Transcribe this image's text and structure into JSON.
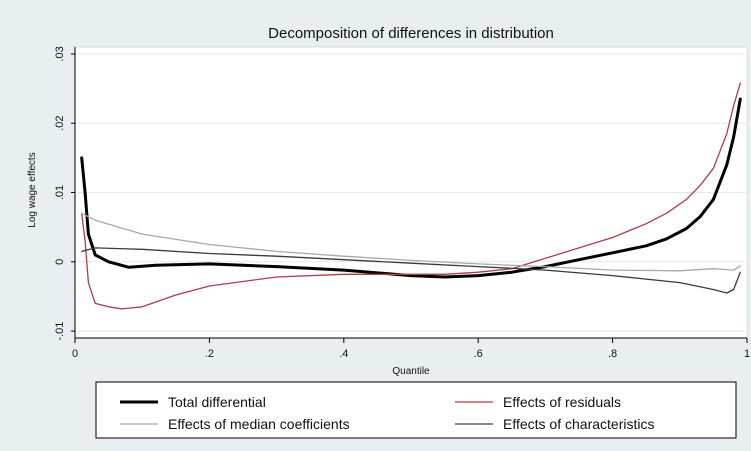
{
  "colors": {
    "background": "#e9eef1",
    "plot_background": "#ffffff",
    "total": "#000000",
    "residuals": "#b03a48",
    "median": "#a9a9a9",
    "characteristics": "#3a3a3a"
  },
  "chart_data": {
    "type": "line",
    "title": "Decomposition of differences in distribution",
    "xlabel": "Quantile",
    "ylabel": "Log wage effects",
    "xlim": [
      0,
      1
    ],
    "ylim": [
      -0.011,
      0.031
    ],
    "x_ticks": [
      0,
      0.2,
      0.4,
      0.6,
      0.8,
      1
    ],
    "x_tick_labels": [
      "0",
      ".2",
      ".4",
      ".6",
      ".8",
      "1"
    ],
    "y_ticks": [
      -0.01,
      0,
      0.01,
      0.02,
      0.03
    ],
    "y_tick_labels": [
      "-.01",
      "0",
      ".01",
      ".02",
      ".03"
    ],
    "grid": true,
    "legend": "bottom",
    "series": [
      {
        "name": "Total differential",
        "color_key": "total",
        "width": 3,
        "points": [
          [
            0.01,
            0.015
          ],
          [
            0.015,
            0.01
          ],
          [
            0.02,
            0.004
          ],
          [
            0.03,
            0.001
          ],
          [
            0.05,
            0.0
          ],
          [
            0.08,
            -0.0008
          ],
          [
            0.12,
            -0.0005
          ],
          [
            0.2,
            -0.0003
          ],
          [
            0.3,
            -0.0007
          ],
          [
            0.4,
            -0.0012
          ],
          [
            0.5,
            -0.002
          ],
          [
            0.55,
            -0.0022
          ],
          [
            0.6,
            -0.002
          ],
          [
            0.65,
            -0.0015
          ],
          [
            0.7,
            -0.0007
          ],
          [
            0.75,
            0.0003
          ],
          [
            0.8,
            0.0013
          ],
          [
            0.85,
            0.0023
          ],
          [
            0.88,
            0.0033
          ],
          [
            0.91,
            0.0048
          ],
          [
            0.93,
            0.0065
          ],
          [
            0.95,
            0.009
          ],
          [
            0.97,
            0.014
          ],
          [
            0.98,
            0.018
          ],
          [
            0.99,
            0.0235
          ]
        ]
      },
      {
        "name": "Effects of residuals",
        "color_key": "residuals",
        "width": 1.3,
        "points": [
          [
            0.01,
            0.007
          ],
          [
            0.015,
            0.003
          ],
          [
            0.02,
            -0.003
          ],
          [
            0.03,
            -0.006
          ],
          [
            0.05,
            -0.0065
          ],
          [
            0.07,
            -0.0068
          ],
          [
            0.1,
            -0.0065
          ],
          [
            0.15,
            -0.0048
          ],
          [
            0.2,
            -0.0035
          ],
          [
            0.3,
            -0.0022
          ],
          [
            0.4,
            -0.0018
          ],
          [
            0.5,
            -0.0018
          ],
          [
            0.55,
            -0.0018
          ],
          [
            0.6,
            -0.0015
          ],
          [
            0.65,
            -0.001
          ],
          [
            0.7,
            0.0005
          ],
          [
            0.75,
            0.002
          ],
          [
            0.8,
            0.0035
          ],
          [
            0.85,
            0.0055
          ],
          [
            0.88,
            0.007
          ],
          [
            0.91,
            0.009
          ],
          [
            0.93,
            0.011
          ],
          [
            0.95,
            0.0135
          ],
          [
            0.97,
            0.0185
          ],
          [
            0.98,
            0.0225
          ],
          [
            0.99,
            0.0258
          ]
        ]
      },
      {
        "name": "Effects of median coefficients",
        "color_key": "median",
        "width": 1.3,
        "points": [
          [
            0.01,
            0.007
          ],
          [
            0.03,
            0.006
          ],
          [
            0.1,
            0.004
          ],
          [
            0.2,
            0.0025
          ],
          [
            0.3,
            0.0015
          ],
          [
            0.4,
            0.0008
          ],
          [
            0.5,
            0.0002
          ],
          [
            0.6,
            -0.0003
          ],
          [
            0.7,
            -0.0007
          ],
          [
            0.8,
            -0.0012
          ],
          [
            0.9,
            -0.0013
          ],
          [
            0.95,
            -0.001
          ],
          [
            0.98,
            -0.0012
          ],
          [
            0.99,
            -0.0006
          ]
        ]
      },
      {
        "name": "Effects of characteristics",
        "color_key": "characteristics",
        "width": 1.3,
        "points": [
          [
            0.01,
            0.0015
          ],
          [
            0.03,
            0.002
          ],
          [
            0.1,
            0.0018
          ],
          [
            0.2,
            0.0012
          ],
          [
            0.3,
            0.0008
          ],
          [
            0.4,
            0.0003
          ],
          [
            0.5,
            -0.0002
          ],
          [
            0.6,
            -0.0007
          ],
          [
            0.7,
            -0.0012
          ],
          [
            0.8,
            -0.002
          ],
          [
            0.85,
            -0.0025
          ],
          [
            0.9,
            -0.003
          ],
          [
            0.95,
            -0.004
          ],
          [
            0.97,
            -0.0045
          ],
          [
            0.98,
            -0.004
          ],
          [
            0.99,
            -0.0015
          ]
        ]
      }
    ]
  }
}
